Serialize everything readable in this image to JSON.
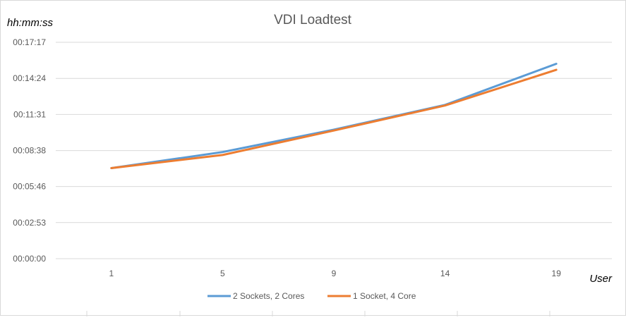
{
  "chart_data": {
    "type": "line",
    "title": "VDI Loadtest",
    "xlabel": "User",
    "ylabel": "hh:mm:ss",
    "categories": [
      "1",
      "5",
      "9",
      "14",
      "19"
    ],
    "y_ticks": [
      "00:00:00",
      "00:02:53",
      "00:05:46",
      "00:08:38",
      "00:11:31",
      "00:14:24",
      "00:17:17"
    ],
    "ylim": [
      "00:00:00",
      "00:17:17"
    ],
    "series": [
      {
        "name": "2 Sockets, 2 Cores",
        "color": "#5b9bd5",
        "values": [
          "00:07:14",
          "00:08:31",
          "00:10:18",
          "00:12:17",
          "00:15:34"
        ]
      },
      {
        "name": "1 Socket, 4 Core",
        "color": "#ed7d31",
        "values": [
          "00:07:14",
          "00:08:17",
          "00:10:14",
          "00:12:14",
          "00:15:05"
        ]
      }
    ],
    "grid": true,
    "legend_position": "bottom"
  }
}
